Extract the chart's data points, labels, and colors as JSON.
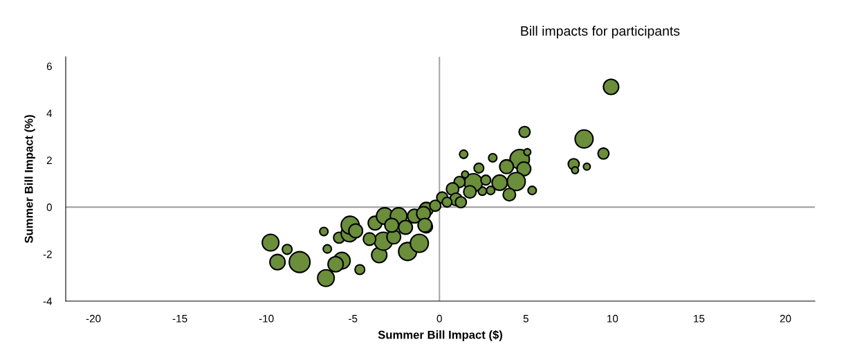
{
  "chart_data": {
    "type": "bubble",
    "title": "Bill impacts for participants",
    "xlabel": "Summer Bill Impact ($)",
    "ylabel": "Summer Bill Impact (%)",
    "xlim": [
      -21.6,
      21.7
    ],
    "ylim": [
      -4,
      6.4
    ],
    "xticks": [
      -20,
      -15,
      -10,
      -5,
      0,
      5,
      10,
      15,
      20
    ],
    "yticks": [
      -4,
      -2,
      0,
      2,
      4,
      6
    ],
    "grid": false,
    "legend": false,
    "ref_lines": [
      {
        "axis": "x",
        "value": 0,
        "color": "#a6a6a6"
      },
      {
        "axis": "y",
        "value": 0,
        "color": "#999999"
      }
    ],
    "series": [
      {
        "color": "#6b8e3a",
        "x": [
          -9.76,
          -8.8,
          -9.36,
          -8.08,
          -6.68,
          -6.48,
          -6.56,
          -5.64,
          -6.0,
          -4.6,
          -5.8,
          -5.2,
          -5.16,
          -4.84,
          -3.48,
          -3.24,
          -4.04,
          -1.84,
          -1.16,
          -2.64,
          -0.76,
          -3.72,
          -3.16,
          -2.36,
          -1.44,
          -1.96,
          -2.76,
          -0.76,
          9.92,
          4.92,
          8.36,
          9.48,
          7.76,
          7.84,
          8.52,
          1.4,
          3.08,
          2.28,
          4.64,
          5.08,
          3.88,
          4.88,
          4.44,
          3.48,
          4.04,
          5.36,
          2.96,
          2.48,
          1.96,
          1.76,
          1.16,
          0.76,
          1.48,
          0.16,
          0.96,
          1.24,
          -0.24,
          -0.92,
          -0.84,
          2.68,
          0.44
        ],
        "values": [
          -1.51,
          -1.8,
          -2.34,
          -2.34,
          -1.04,
          -1.78,
          -3.02,
          -2.28,
          -2.43,
          -2.66,
          -1.3,
          -1.12,
          -0.77,
          -1.01,
          -2.04,
          -1.45,
          -1.36,
          -1.89,
          -1.54,
          -1.27,
          -0.83,
          -0.68,
          -0.38,
          -0.38,
          -0.38,
          -0.86,
          -0.77,
          -0.09,
          5.12,
          3.2,
          2.9,
          2.28,
          1.83,
          1.57,
          1.72,
          2.25,
          2.1,
          1.66,
          2.04,
          2.34,
          1.72,
          1.63,
          1.09,
          1.04,
          0.53,
          0.71,
          0.71,
          0.68,
          1.04,
          0.65,
          1.07,
          0.77,
          1.39,
          0.41,
          0.33,
          0.21,
          0.06,
          -0.27,
          -0.77,
          1.15,
          0.21
        ],
        "sizes": [
          0.64,
          0.22,
          0.54,
          1,
          0.16,
          0.16,
          0.64,
          0.64,
          0.54,
          0.22,
          0.28,
          0.64,
          0.75,
          0.44,
          0.54,
          0.75,
          0.36,
          0.75,
          0.75,
          0.44,
          0.36,
          0.44,
          0.64,
          0.64,
          0.44,
          0.44,
          0.44,
          0.44,
          0.54,
          0.28,
          0.75,
          0.28,
          0.28,
          0.11,
          0.11,
          0.16,
          0.16,
          0.22,
          0.87,
          0.11,
          0.44,
          0.44,
          0.75,
          0.54,
          0.36,
          0.16,
          0.16,
          0.16,
          0.75,
          0.36,
          0.28,
          0.36,
          0.11,
          0.28,
          0.36,
          0.28,
          0.28,
          0.44,
          0.44,
          0.22,
          0.22
        ]
      }
    ]
  }
}
